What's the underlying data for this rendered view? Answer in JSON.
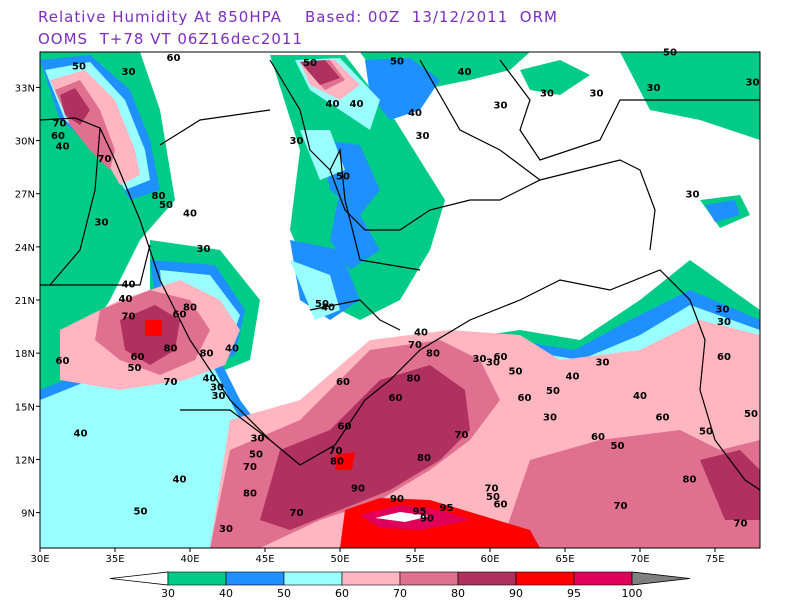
{
  "title_line1": "Relative Humidity At 850HPA    Based: 00Z  13/12/2011  ORM",
  "title_line2": "OOMS  T+78 VT 06Z16dec2011",
  "lat_labels": [
    "33N",
    "30N",
    "27N",
    "24N",
    "21N",
    "18N",
    "15N",
    "12N",
    "9N"
  ],
  "lat_values": [
    33,
    30,
    27,
    24,
    21,
    18,
    15,
    12,
    9
  ],
  "lon_labels": [
    "30E",
    "35E",
    "40E",
    "45E",
    "50E",
    "55E",
    "60E",
    "65E",
    "70E",
    "75E"
  ],
  "lon_values": [
    30,
    35,
    40,
    45,
    50,
    55,
    60,
    65,
    70,
    75
  ],
  "extent": {
    "lon_min": 30,
    "lon_max": 78,
    "lat_min": 7,
    "lat_max": 35
  },
  "colorbar": {
    "levels": [
      "30",
      "40",
      "50",
      "60",
      "70",
      "80",
      "90",
      "95",
      "100"
    ],
    "colors": [
      "#00cc88",
      "#1e90ff",
      "#99ffff",
      "#ffb6c1",
      "#e07090",
      "#b03060",
      "#ff0000",
      "#e0005a",
      "#808080"
    ]
  },
  "contour_labels": [
    {
      "t": "50",
      "lon": 32.6,
      "lat": 34.0
    },
    {
      "t": "60",
      "lon": 38.9,
      "lat": 34.5
    },
    {
      "t": "70",
      "lon": 31.3,
      "lat": 30.8
    },
    {
      "t": "60",
      "lon": 31.2,
      "lat": 30.1
    },
    {
      "t": "40",
      "lon": 31.5,
      "lat": 29.5
    },
    {
      "t": "70",
      "lon": 34.3,
      "lat": 28.8
    },
    {
      "t": "80",
      "lon": 37.9,
      "lat": 26.7
    },
    {
      "t": "50",
      "lon": 38.4,
      "lat": 26.2
    },
    {
      "t": "40",
      "lon": 40.0,
      "lat": 25.7
    },
    {
      "t": "30",
      "lon": 34.1,
      "lat": 25.2
    },
    {
      "t": "30",
      "lon": 35.9,
      "lat": 33.7
    },
    {
      "t": "30",
      "lon": 47.1,
      "lat": 29.8
    },
    {
      "t": "50",
      "lon": 48.0,
      "lat": 34.2
    },
    {
      "t": "50",
      "lon": 53.8,
      "lat": 34.3
    },
    {
      "t": "40",
      "lon": 58.3,
      "lat": 33.7
    },
    {
      "t": "50",
      "lon": 72.0,
      "lat": 34.8
    },
    {
      "t": "40",
      "lon": 49.5,
      "lat": 31.9
    },
    {
      "t": "40",
      "lon": 51.1,
      "lat": 31.9
    },
    {
      "t": "40",
      "lon": 55.0,
      "lat": 31.4
    },
    {
      "t": "30",
      "lon": 60.7,
      "lat": 31.8
    },
    {
      "t": "30",
      "lon": 55.5,
      "lat": 30.1
    },
    {
      "t": "30",
      "lon": 63.8,
      "lat": 32.5
    },
    {
      "t": "30",
      "lon": 67.1,
      "lat": 32.5
    },
    {
      "t": "30",
      "lon": 70.9,
      "lat": 32.8
    },
    {
      "t": "30",
      "lon": 77.5,
      "lat": 33.1
    },
    {
      "t": "50",
      "lon": 50.2,
      "lat": 27.8
    },
    {
      "t": "30",
      "lon": 73.5,
      "lat": 26.8
    },
    {
      "t": "30",
      "lon": 40.9,
      "lat": 23.7
    },
    {
      "t": "40",
      "lon": 35.9,
      "lat": 21.7
    },
    {
      "t": "40",
      "lon": 35.7,
      "lat": 20.9
    },
    {
      "t": "70",
      "lon": 35.9,
      "lat": 19.9
    },
    {
      "t": "60",
      "lon": 39.3,
      "lat": 20.0
    },
    {
      "t": "80",
      "lon": 40.0,
      "lat": 20.4
    },
    {
      "t": "80",
      "lon": 38.7,
      "lat": 18.1
    },
    {
      "t": "60",
      "lon": 36.5,
      "lat": 17.6
    },
    {
      "t": "50",
      "lon": 36.3,
      "lat": 17.0
    },
    {
      "t": "80",
      "lon": 41.1,
      "lat": 17.8
    },
    {
      "t": "40",
      "lon": 42.8,
      "lat": 18.1
    },
    {
      "t": "70",
      "lon": 38.7,
      "lat": 16.2
    },
    {
      "t": "40",
      "lon": 41.3,
      "lat": 16.4
    },
    {
      "t": "30",
      "lon": 41.8,
      "lat": 15.9
    },
    {
      "t": "30",
      "lon": 41.9,
      "lat": 15.4
    },
    {
      "t": "60",
      "lon": 31.5,
      "lat": 17.4
    },
    {
      "t": "40",
      "lon": 32.7,
      "lat": 13.3
    },
    {
      "t": "40",
      "lon": 39.3,
      "lat": 10.7
    },
    {
      "t": "50",
      "lon": 36.7,
      "lat": 8.9
    },
    {
      "t": "30",
      "lon": 42.4,
      "lat": 7.9
    },
    {
      "t": "40",
      "lon": 49.2,
      "lat": 20.4
    },
    {
      "t": "50",
      "lon": 48.8,
      "lat": 20.6
    },
    {
      "t": "40",
      "lon": 55.4,
      "lat": 19.0
    },
    {
      "t": "70",
      "lon": 55.0,
      "lat": 18.3
    },
    {
      "t": "80",
      "lon": 56.2,
      "lat": 17.8
    },
    {
      "t": "30",
      "lon": 59.3,
      "lat": 17.5
    },
    {
      "t": "30",
      "lon": 60.2,
      "lat": 17.3
    },
    {
      "t": "60",
      "lon": 60.7,
      "lat": 17.6
    },
    {
      "t": "50",
      "lon": 61.7,
      "lat": 16.8
    },
    {
      "t": "60",
      "lon": 62.3,
      "lat": 15.3
    },
    {
      "t": "50",
      "lon": 64.2,
      "lat": 15.7
    },
    {
      "t": "40",
      "lon": 65.5,
      "lat": 16.5
    },
    {
      "t": "30",
      "lon": 67.5,
      "lat": 17.3
    },
    {
      "t": "40",
      "lon": 70.0,
      "lat": 15.4
    },
    {
      "t": "30",
      "lon": 64.0,
      "lat": 14.2
    },
    {
      "t": "60",
      "lon": 67.2,
      "lat": 13.1
    },
    {
      "t": "50",
      "lon": 68.5,
      "lat": 12.6
    },
    {
      "t": "60",
      "lon": 71.5,
      "lat": 14.2
    },
    {
      "t": "50",
      "lon": 74.4,
      "lat": 13.4
    },
    {
      "t": "60",
      "lon": 75.6,
      "lat": 17.6
    },
    {
      "t": "50",
      "lon": 77.4,
      "lat": 14.4
    },
    {
      "t": "30",
      "lon": 75.6,
      "lat": 19.6
    },
    {
      "t": "30",
      "lon": 75.5,
      "lat": 20.3
    },
    {
      "t": "60",
      "lon": 50.2,
      "lat": 16.2
    },
    {
      "t": "80",
      "lon": 54.9,
      "lat": 16.4
    },
    {
      "t": "60",
      "lon": 53.7,
      "lat": 15.3
    },
    {
      "t": "60",
      "lon": 50.3,
      "lat": 13.7
    },
    {
      "t": "70",
      "lon": 58.1,
      "lat": 13.2
    },
    {
      "t": "70",
      "lon": 49.7,
      "lat": 12.3
    },
    {
      "t": "80",
      "lon": 49.8,
      "lat": 11.7
    },
    {
      "t": "80",
      "lon": 55.6,
      "lat": 11.9
    },
    {
      "t": "70",
      "lon": 60.1,
      "lat": 10.2
    },
    {
      "t": "50",
      "lon": 60.2,
      "lat": 9.7
    },
    {
      "t": "60",
      "lon": 60.7,
      "lat": 9.3
    },
    {
      "t": "90",
      "lon": 51.2,
      "lat": 10.2
    },
    {
      "t": "90",
      "lon": 53.8,
      "lat": 9.6
    },
    {
      "t": "95",
      "lon": 55.3,
      "lat": 8.9
    },
    {
      "t": "95",
      "lon": 57.1,
      "lat": 9.1
    },
    {
      "t": "90",
      "lon": 55.8,
      "lat": 8.5
    },
    {
      "t": "30",
      "lon": 44.5,
      "lat": 13.0
    },
    {
      "t": "70",
      "lon": 44.0,
      "lat": 11.4
    },
    {
      "t": "80",
      "lon": 44.0,
      "lat": 9.9
    },
    {
      "t": "70",
      "lon": 47.1,
      "lat": 8.8
    },
    {
      "t": "50",
      "lon": 44.4,
      "lat": 12.1
    },
    {
      "t": "70",
      "lon": 68.7,
      "lat": 9.2
    },
    {
      "t": "70",
      "lon": 76.7,
      "lat": 8.2
    },
    {
      "t": "80",
      "lon": 73.3,
      "lat": 10.7
    }
  ]
}
